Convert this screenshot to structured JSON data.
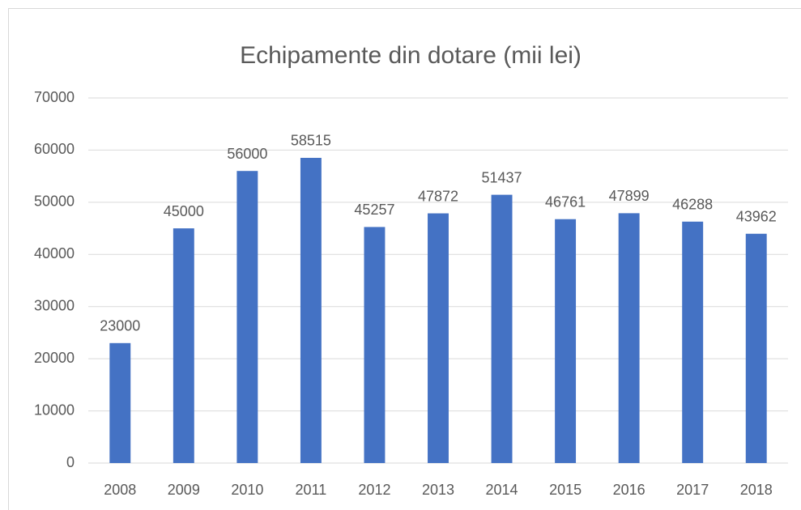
{
  "chart_data": {
    "type": "bar",
    "title": "Echipamente din dotare (mii lei)",
    "categories": [
      "2008",
      "2009",
      "2010",
      "2011",
      "2012",
      "2013",
      "2014",
      "2015",
      "2016",
      "2017",
      "2018"
    ],
    "values": [
      23000,
      45000,
      56000,
      58515,
      45257,
      47872,
      51437,
      46761,
      47899,
      46288,
      43962
    ],
    "color": "#4472c4",
    "ylim": [
      0,
      70000
    ],
    "yticks": [
      0,
      10000,
      20000,
      30000,
      40000,
      50000,
      60000,
      70000
    ],
    "grid": true
  }
}
